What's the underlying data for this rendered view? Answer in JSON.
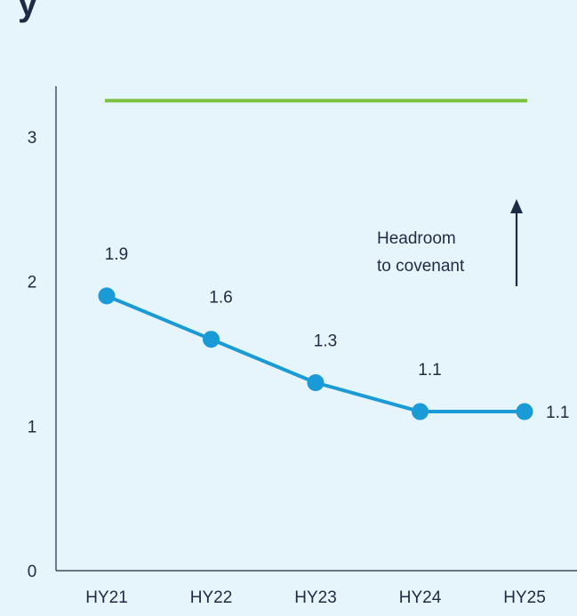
{
  "chart_data": {
    "type": "line",
    "categories": [
      "HY21",
      "HY22",
      "HY23",
      "HY24",
      "HY25"
    ],
    "series": [
      {
        "values": [
          1.9,
          1.6,
          1.3,
          1.1,
          1.1
        ],
        "color": "#1a9bd7"
      }
    ],
    "data_labels": [
      "1.9",
      "1.6",
      "1.3",
      "1.1",
      "1.1"
    ],
    "reference_line": {
      "value": 3.25,
      "color": "#7cc142"
    },
    "annotation": {
      "lines": [
        "Headroom",
        "to covenant"
      ],
      "arrow": "up"
    },
    "y_ticks": [
      "0",
      "1",
      "2",
      "3"
    ],
    "ylim": [
      0,
      3.35
    ],
    "title_fragment": "y",
    "grid": false
  }
}
